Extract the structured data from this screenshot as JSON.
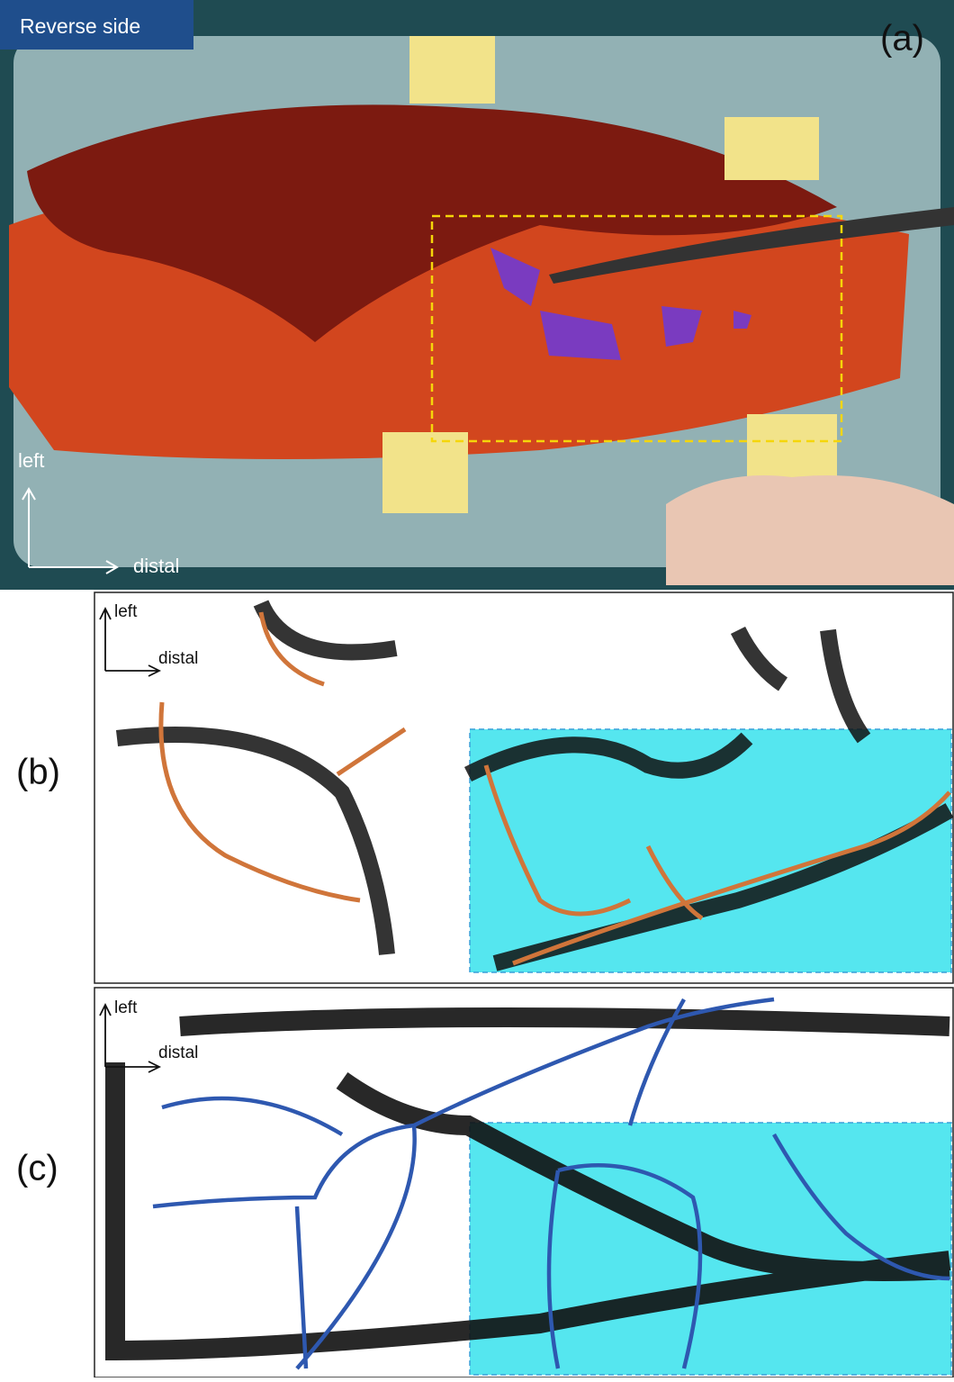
{
  "panel_a": {
    "badge": "Reverse side",
    "label": "(a)",
    "axis_up": "left",
    "axis_right": "distal"
  },
  "panel_b": {
    "label": "(b)",
    "axis_up": "left",
    "axis_right": "distal"
  },
  "panel_c": {
    "label": "(c)",
    "axis_up": "left",
    "axis_right": "distal"
  }
}
